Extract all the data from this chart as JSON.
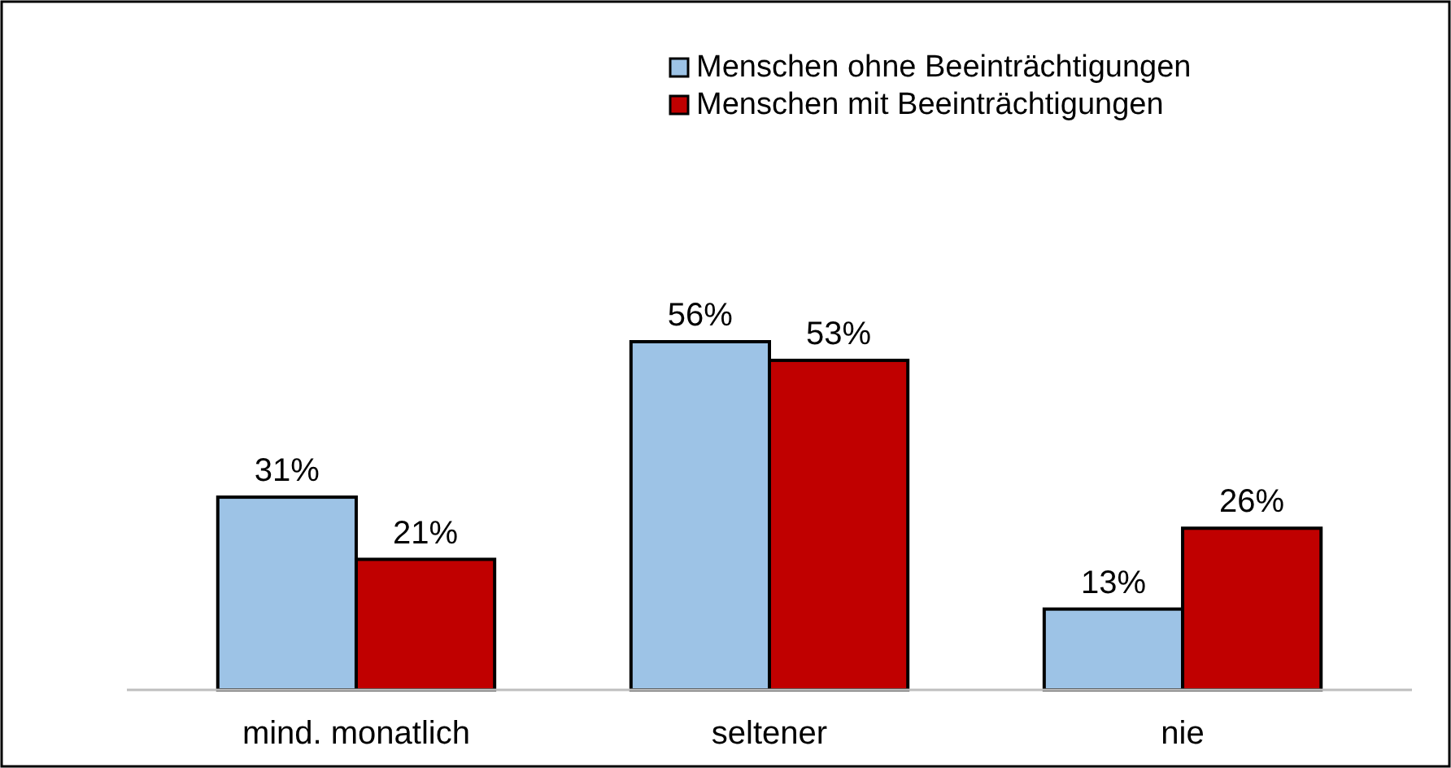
{
  "chart_data": {
    "type": "bar",
    "categories": [
      "mind. monatlich",
      "seltener",
      "nie"
    ],
    "series": [
      {
        "name": "Menschen ohne Beeinträchtigungen",
        "color": "#9dc3e6",
        "values": [
          31,
          56,
          13
        ],
        "value_labels": [
          "31%",
          "56%",
          "13%"
        ]
      },
      {
        "name": "Menschen mit Beeinträchtigungen",
        "color": "#c00000",
        "values": [
          21,
          53,
          26
        ],
        "value_labels": [
          "21%",
          "53%",
          "26%"
        ]
      }
    ],
    "legend": "top right"
  }
}
